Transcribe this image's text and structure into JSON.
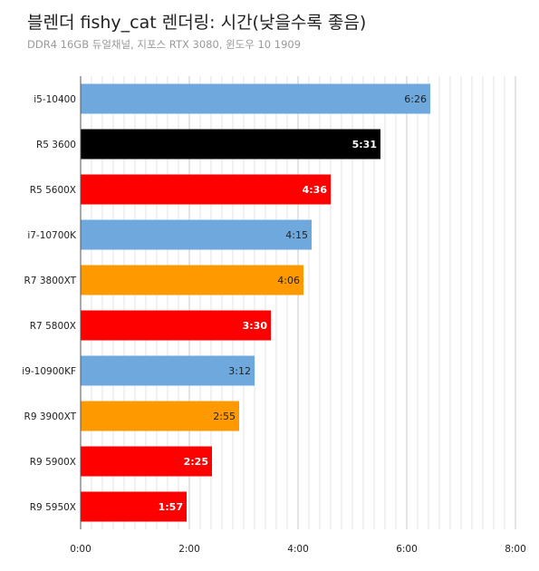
{
  "chart_data": {
    "type": "bar",
    "orientation": "horizontal",
    "title": "블렌더 fishy_cat 렌더링: 시간(낮을수록 좋음)",
    "subtitle": "DDR4 16GB 듀얼채널, 지포스 RTX 3080, 윈도우 10 1909",
    "categories": [
      "i5-10400",
      "R5 3600",
      "R5 5600X",
      "i7-10700K",
      "R7 3800XT",
      "R7 5800X",
      "i9-10900KF",
      "R9 3900XT",
      "R9 5900X",
      "R9 5950X"
    ],
    "values": [
      386,
      331,
      276,
      255,
      246,
      210,
      192,
      175,
      145,
      117
    ],
    "value_labels": [
      "6:26",
      "5:31",
      "4:36",
      "4:15",
      "4:06",
      "3:30",
      "3:12",
      "2:55",
      "2:25",
      "1:57"
    ],
    "bar_colors": [
      "#6fa8dc",
      "#000000",
      "#ff0000",
      "#6fa8dc",
      "#ff9900",
      "#ff0000",
      "#6fa8dc",
      "#ff9900",
      "#ff0000",
      "#ff0000"
    ],
    "label_colors": [
      "#222222",
      "#ffffff",
      "#ffffff",
      "#222222",
      "#222222",
      "#ffffff",
      "#222222",
      "#222222",
      "#ffffff",
      "#ffffff"
    ],
    "label_bold": [
      false,
      true,
      true,
      false,
      false,
      true,
      false,
      false,
      true,
      true
    ],
    "xlim": [
      0,
      480
    ],
    "xticks": [
      0,
      120,
      240,
      360,
      480
    ],
    "xtick_labels": [
      "0:00",
      "2:00",
      "4:00",
      "6:00",
      "8:00"
    ],
    "grid": true,
    "legend": "none"
  }
}
